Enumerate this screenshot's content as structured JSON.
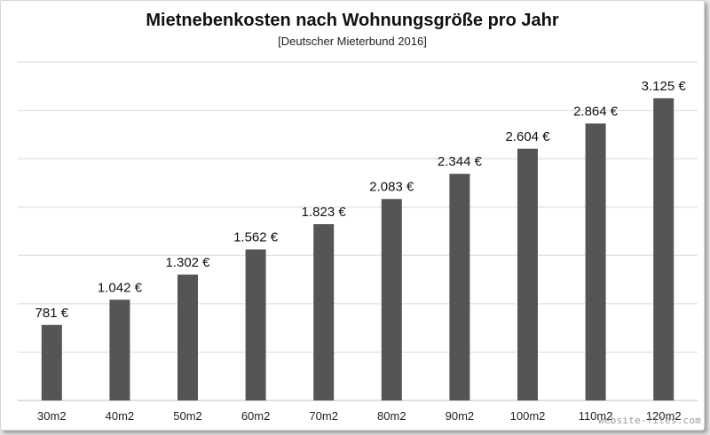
{
  "chart_data": {
    "type": "bar",
    "title": "Mietnebenkosten nach Wohnungsgröße pro Jahr",
    "subtitle": "[Deutscher Mieterbund 2016]",
    "xlabel": "",
    "ylabel": "",
    "ylim": [
      0,
      3500
    ],
    "grid": true,
    "legend": "none",
    "categories": [
      "30m2",
      "40m2",
      "50m2",
      "60m2",
      "70m2",
      "80m2",
      "90m2",
      "100m2",
      "110m2",
      "120m2"
    ],
    "values": [
      781,
      1042,
      1302,
      1562,
      1823,
      2083,
      2344,
      2604,
      2864,
      3125
    ],
    "value_labels": [
      "781 €",
      "1.042 €",
      "1.302 €",
      "1.562 €",
      "1.823 €",
      "2.083 €",
      "2.344 €",
      "2.604 €",
      "2.864 €",
      "3.125 €"
    ],
    "bar_color": "#555555",
    "grid_color": "#d9d9d9"
  },
  "watermark": "website-files.com"
}
